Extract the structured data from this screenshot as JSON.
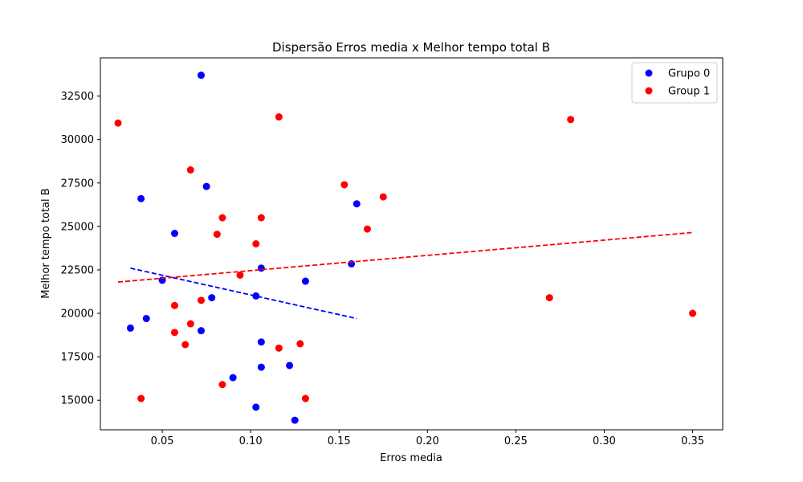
{
  "chart_data": {
    "type": "scatter",
    "title": "Dispersão Erros media x Melhor tempo total B",
    "xlabel": "Erros media",
    "ylabel": "Melhor tempo total B",
    "xlim": [
      0.015,
      0.367
    ],
    "ylim": [
      13300,
      34700
    ],
    "xticks": [
      0.05,
      0.1,
      0.15,
      0.2,
      0.25,
      0.3,
      0.35
    ],
    "xtick_labels": [
      "0.05",
      "0.10",
      "0.15",
      "0.20",
      "0.25",
      "0.30",
      "0.35"
    ],
    "yticks": [
      15000,
      17500,
      20000,
      22500,
      25000,
      27500,
      30000,
      32500
    ],
    "ytick_labels": [
      "15000",
      "17500",
      "20000",
      "22500",
      "25000",
      "27500",
      "30000",
      "32500"
    ],
    "grid": false,
    "legend_position": "top-right",
    "series": [
      {
        "name": "Grupo 0",
        "color": "#0000ff",
        "points": [
          [
            0.072,
            33700
          ],
          [
            0.038,
            26600
          ],
          [
            0.075,
            27300
          ],
          [
            0.057,
            24600
          ],
          [
            0.16,
            26300
          ],
          [
            0.05,
            21900
          ],
          [
            0.078,
            20900
          ],
          [
            0.041,
            19700
          ],
          [
            0.032,
            19150
          ],
          [
            0.072,
            19000
          ],
          [
            0.103,
            21000
          ],
          [
            0.106,
            22600
          ],
          [
            0.131,
            21850
          ],
          [
            0.157,
            22850
          ],
          [
            0.106,
            18350
          ],
          [
            0.106,
            16900
          ],
          [
            0.122,
            17000
          ],
          [
            0.09,
            16300
          ],
          [
            0.103,
            14600
          ],
          [
            0.125,
            13850
          ]
        ],
        "trend": {
          "x": [
            0.032,
            0.16
          ],
          "y": [
            22600,
            19700
          ]
        }
      },
      {
        "name": "Group 1",
        "color": "#ff0000",
        "points": [
          [
            0.025,
            30950
          ],
          [
            0.116,
            31300
          ],
          [
            0.281,
            31150
          ],
          [
            0.066,
            28250
          ],
          [
            0.153,
            27400
          ],
          [
            0.175,
            26700
          ],
          [
            0.084,
            25500
          ],
          [
            0.106,
            25500
          ],
          [
            0.166,
            24850
          ],
          [
            0.081,
            24550
          ],
          [
            0.103,
            24000
          ],
          [
            0.094,
            22200
          ],
          [
            0.057,
            20450
          ],
          [
            0.072,
            20750
          ],
          [
            0.066,
            19400
          ],
          [
            0.057,
            18900
          ],
          [
            0.063,
            18200
          ],
          [
            0.116,
            18000
          ],
          [
            0.128,
            18250
          ],
          [
            0.084,
            15900
          ],
          [
            0.038,
            15100
          ],
          [
            0.131,
            15100
          ],
          [
            0.269,
            20900
          ],
          [
            0.35,
            20000
          ]
        ],
        "trend": {
          "x": [
            0.025,
            0.35
          ],
          "y": [
            21800,
            24650
          ]
        }
      }
    ]
  }
}
